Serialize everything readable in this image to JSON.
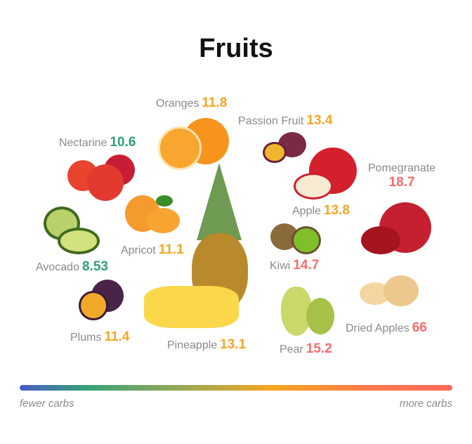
{
  "title": "Fruits",
  "colors": {
    "low": "#2e9e7a",
    "mid": "#f5a623",
    "high": "#fa6b6b",
    "scale_start": "#4a5bc4"
  },
  "fruits": [
    {
      "name": "Oranges",
      "value": "11.8",
      "level": "mid"
    },
    {
      "name": "Passion Fruit",
      "value": "13.4",
      "level": "mid"
    },
    {
      "name": "Nectarine",
      "value": "10.6",
      "level": "low"
    },
    {
      "name": "Pomegranate",
      "value": "18.7",
      "level": "high"
    },
    {
      "name": "Apple",
      "value": "13.8",
      "level": "mid"
    },
    {
      "name": "Apricot",
      "value": "11.1",
      "level": "mid"
    },
    {
      "name": "Avocado",
      "value": "8.53",
      "level": "low"
    },
    {
      "name": "Kiwi",
      "value": "14.7",
      "level": "high"
    },
    {
      "name": "Plums",
      "value": "11.4",
      "level": "mid"
    },
    {
      "name": "Dried Apples",
      "value": "66",
      "level": "high"
    },
    {
      "name": "Pineapple",
      "value": "13.1",
      "level": "mid"
    },
    {
      "name": "Pear",
      "value": "15.2",
      "level": "high"
    }
  ],
  "legend": {
    "left": "fewer carbs",
    "right": "more carbs"
  }
}
